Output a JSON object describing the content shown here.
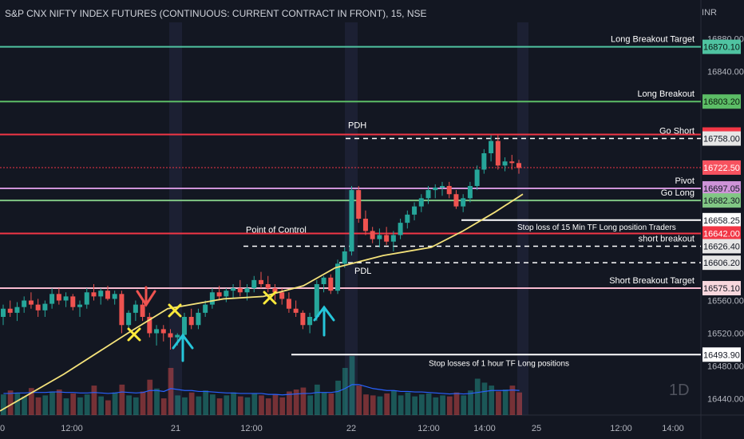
{
  "header": {
    "title": "S&P CNX NIFTY INDEX FUTURES (CONTINUOUS: CURRENT CONTRACT IN FRONT), 15, NSE",
    "currency": "INR"
  },
  "watermark": "1D",
  "chart_data": {
    "type": "candlestick",
    "ylim": [
      16420,
      16900
    ],
    "y_ticks": [
      16880,
      16840,
      16560,
      16520,
      16480,
      16440
    ],
    "x_tick_labels": [
      "0",
      "12:00",
      "21",
      "12:00",
      "22",
      "12:00",
      "14:00",
      "25",
      "12:00",
      "14:00"
    ],
    "session_starts": [
      220,
      440
    ],
    "colors": {
      "up": "#26a69a",
      "down": "#ef5350",
      "ema": "#f4e27a",
      "volume_ma": "#2962ff"
    },
    "levels": [
      {
        "name": "Long Breakout Target",
        "label": "Long Breakout Target",
        "value": 16870.1,
        "price_label": "16870.10",
        "color": "#4fc3a1",
        "badge_bg": "#4fc3a1",
        "badge_text": "#0b1b16",
        "style": "solid"
      },
      {
        "name": "Long Breakout",
        "label": "Long Breakout",
        "value": 16803.2,
        "price_label": "16803.20",
        "color": "#5cbd66",
        "badge_bg": "#5cbd66",
        "badge_text": "#0b1b0d",
        "style": "solid"
      },
      {
        "name": "PDH line",
        "label": "",
        "value": 16762.9,
        "price_label": "16762.90",
        "color": "#f23645",
        "badge_bg": "#f23645",
        "badge_text": "#ffffff",
        "style": "solid"
      },
      {
        "name": "Go Short",
        "label": "Go Short",
        "value": 16758.0,
        "price_label": "16758.00",
        "color": "#ffffff",
        "badge_bg": "#e6e6e6",
        "badge_text": "#131722",
        "style": "dashed"
      },
      {
        "name": "Last price",
        "label": "",
        "value": 16722.5,
        "price_label": "16722.50",
        "color": "#f23645",
        "badge_bg": "#f7525f",
        "badge_text": "#ffffff",
        "style": "dotted"
      },
      {
        "name": "Pivot",
        "label": "Pivot",
        "value": 16697.05,
        "price_label": "16697.05",
        "color": "#ce93d8",
        "badge_bg": "#ce93d8",
        "badge_text": "#131722",
        "style": "solid"
      },
      {
        "name": "Go Long",
        "label": "Go Long",
        "value": 16682.3,
        "price_label": "16682.30",
        "color": "#81c784",
        "badge_bg": "#81c784",
        "badge_text": "#131722",
        "style": "solid"
      },
      {
        "name": "Stop 15m",
        "label": "Stop loss of 15 Min TF Long position Traders",
        "value": 16658.25,
        "price_label": "16658.25",
        "color": "#ffffff",
        "badge_bg": "#ffffff",
        "badge_text": "#131722",
        "style": "solid"
      },
      {
        "name": "Point of Control",
        "label": "",
        "value": 16642.0,
        "price_label": "16642.00",
        "color": "#f23645",
        "badge_bg": "#f23645",
        "badge_text": "#ffffff",
        "style": "solid"
      },
      {
        "name": "short breakout",
        "label": "short breakout",
        "value": 16626.4,
        "price_label": "16626.40",
        "color": "#ffffff",
        "badge_bg": "#e6e6e6",
        "badge_text": "#131722",
        "style": "dashed"
      },
      {
        "name": "PDL",
        "label": "",
        "value": 16606.2,
        "price_label": "16606.20",
        "color": "#ffffff",
        "badge_bg": "#e6e6e6",
        "badge_text": "#131722",
        "style": "dashed"
      },
      {
        "name": "Short Breakout Target",
        "label": "Short  Breakout Target",
        "value": 16575.1,
        "price_label": "16575.10",
        "color": "#f8bbd0",
        "badge_bg": "#f8d7dd",
        "badge_text": "#131722",
        "style": "solid"
      },
      {
        "name": "Stop 1h",
        "label": "Stop losses of 1 hour TF Long positions",
        "value": 16493.9,
        "price_label": "16493.90",
        "color": "#ffffff",
        "badge_bg": "#ffffff",
        "badge_text": "#131722",
        "style": "solid"
      }
    ],
    "annotations": [
      {
        "text": "PDH",
        "value": 16762.9
      },
      {
        "text": "Point of Control",
        "value": 16642.0
      },
      {
        "text": "PDL",
        "value": 16606.2
      }
    ],
    "candles": [
      [
        16540,
        16555,
        16530,
        16550
      ],
      [
        16550,
        16560,
        16540,
        16545
      ],
      [
        16545,
        16558,
        16535,
        16552
      ],
      [
        16552,
        16565,
        16545,
        16560
      ],
      [
        16560,
        16570,
        16550,
        16555
      ],
      [
        16555,
        16562,
        16540,
        16548
      ],
      [
        16548,
        16560,
        16540,
        16556
      ],
      [
        16556,
        16575,
        16550,
        16568
      ],
      [
        16568,
        16575,
        16555,
        16560
      ],
      [
        16560,
        16570,
        16552,
        16565
      ],
      [
        16565,
        16568,
        16548,
        16552
      ],
      [
        16552,
        16560,
        16540,
        16555
      ],
      [
        16555,
        16575,
        16550,
        16570
      ],
      [
        16570,
        16580,
        16560,
        16565
      ],
      [
        16565,
        16575,
        16555,
        16572
      ],
      [
        16572,
        16578,
        16560,
        16562
      ],
      [
        16562,
        16572,
        16555,
        16568
      ],
      [
        16568,
        16572,
        16520,
        16530
      ],
      [
        16530,
        16548,
        16525,
        16545
      ],
      [
        16545,
        16560,
        16535,
        16555
      ],
      [
        16555,
        16560,
        16535,
        16540
      ],
      [
        16540,
        16545,
        16515,
        16520
      ],
      [
        16520,
        16530,
        16505,
        16525
      ],
      [
        16525,
        16530,
        16510,
        16520
      ],
      [
        16520,
        16525,
        16500,
        16515
      ],
      [
        16515,
        16520,
        16505,
        16518
      ],
      [
        16518,
        16545,
        16515,
        16540
      ],
      [
        16540,
        16550,
        16525,
        16530
      ],
      [
        16530,
        16550,
        16525,
        16545
      ],
      [
        16545,
        16560,
        16540,
        16555
      ],
      [
        16555,
        16575,
        16550,
        16570
      ],
      [
        16570,
        16578,
        16560,
        16565
      ],
      [
        16565,
        16575,
        16558,
        16572
      ],
      [
        16572,
        16580,
        16562,
        16575
      ],
      [
        16575,
        16585,
        16565,
        16570
      ],
      [
        16570,
        16580,
        16560,
        16575
      ],
      [
        16575,
        16590,
        16570,
        16585
      ],
      [
        16585,
        16595,
        16575,
        16580
      ],
      [
        16580,
        16590,
        16570,
        16575
      ],
      [
        16575,
        16580,
        16560,
        16570
      ],
      [
        16570,
        16575,
        16555,
        16562
      ],
      [
        16562,
        16570,
        16545,
        16550
      ],
      [
        16550,
        16560,
        16540,
        16545
      ],
      [
        16545,
        16548,
        16525,
        16530
      ],
      [
        16530,
        16545,
        16520,
        16540
      ],
      [
        16540,
        16585,
        16535,
        16580
      ],
      [
        16580,
        16590,
        16570,
        16588
      ],
      [
        16588,
        16592,
        16568,
        16572
      ],
      [
        16572,
        16610,
        16568,
        16605
      ],
      [
        16605,
        16625,
        16600,
        16620
      ],
      [
        16620,
        16700,
        16615,
        16695
      ],
      [
        16695,
        16700,
        16655,
        16660
      ],
      [
        16660,
        16670,
        16640,
        16645
      ],
      [
        16645,
        16650,
        16630,
        16635
      ],
      [
        16635,
        16648,
        16625,
        16640
      ],
      [
        16640,
        16650,
        16628,
        16632
      ],
      [
        16632,
        16645,
        16620,
        16640
      ],
      [
        16640,
        16660,
        16635,
        16655
      ],
      [
        16655,
        16670,
        16648,
        16665
      ],
      [
        16665,
        16680,
        16658,
        16675
      ],
      [
        16675,
        16690,
        16668,
        16685
      ],
      [
        16685,
        16700,
        16678,
        16695
      ],
      [
        16695,
        16702,
        16685,
        16698
      ],
      [
        16698,
        16705,
        16688,
        16700
      ],
      [
        16700,
        16705,
        16685,
        16690
      ],
      [
        16690,
        16695,
        16672,
        16675
      ],
      [
        16675,
        16690,
        16668,
        16685
      ],
      [
        16685,
        16705,
        16680,
        16700
      ],
      [
        16700,
        16725,
        16695,
        16720
      ],
      [
        16720,
        16745,
        16715,
        16740
      ],
      [
        16740,
        16762,
        16730,
        16755
      ],
      [
        16755,
        16762,
        16720,
        16725
      ],
      [
        16725,
        16735,
        16718,
        16730
      ],
      [
        16730,
        16738,
        16720,
        16728
      ],
      [
        16728,
        16732,
        16715,
        16722
      ]
    ],
    "ema": [
      [
        0,
        16425
      ],
      [
        80,
        16470
      ],
      [
        160,
        16520
      ],
      [
        210,
        16550
      ],
      [
        280,
        16562
      ],
      [
        330,
        16565
      ],
      [
        380,
        16578
      ],
      [
        420,
        16600
      ],
      [
        480,
        16615
      ],
      [
        540,
        16625
      ],
      [
        580,
        16645
      ],
      [
        620,
        16668
      ],
      [
        655,
        16690
      ]
    ],
    "volume": [
      42,
      50,
      44,
      38,
      55,
      36,
      40,
      48,
      52,
      34,
      44,
      36,
      42,
      60,
      38,
      30,
      46,
      62,
      40,
      36,
      48,
      72,
      54,
      34,
      96,
      40,
      36,
      46,
      38,
      50,
      42,
      34,
      40,
      46,
      38,
      36,
      44,
      40,
      34,
      42,
      36,
      48,
      52,
      56,
      40,
      62,
      46,
      44,
      70,
      96,
      120,
      60,
      42,
      40,
      38,
      44,
      50,
      40,
      46,
      38,
      42,
      44,
      36,
      40,
      38,
      46,
      40,
      50,
      74,
      66,
      60,
      48,
      52,
      60,
      46
    ],
    "volume_ma": [
      44,
      44,
      45,
      45,
      46,
      46,
      46,
      47,
      47,
      46,
      46,
      45,
      45,
      46,
      45,
      44,
      45,
      47,
      46,
      45,
      46,
      50,
      50,
      48,
      54,
      52,
      50,
      50,
      48,
      48,
      47,
      46,
      45,
      45,
      44,
      44,
      44,
      44,
      42,
      42,
      41,
      42,
      43,
      44,
      44,
      46,
      46,
      46,
      48,
      54,
      62,
      62,
      58,
      54,
      52,
      50,
      50,
      48,
      48,
      47,
      47,
      46,
      45,
      44,
      43,
      44,
      43,
      44,
      46,
      48,
      50,
      50,
      50,
      51,
      50
    ]
  },
  "markers": {
    "down_arrow": {
      "color": "#ef5350"
    },
    "up_arrows": {
      "color": "#26c6da"
    },
    "crosses": {
      "color": "#ffeb3b"
    }
  }
}
